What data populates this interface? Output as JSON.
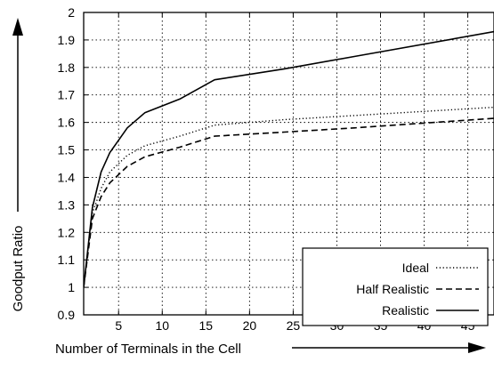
{
  "chart_data": {
    "type": "line",
    "title": "",
    "xlabel": "Number of Terminals in the Cell",
    "ylabel": "Goodput Ratio",
    "xlim": [
      1,
      48
    ],
    "ylim": [
      0.9,
      2.0
    ],
    "xticks": [
      5,
      10,
      15,
      20,
      25,
      30,
      35,
      40,
      45
    ],
    "yticks": [
      0.9,
      1.0,
      1.1,
      1.2,
      1.3,
      1.4,
      1.5,
      1.6,
      1.7,
      1.8,
      1.9,
      2.0
    ],
    "ytick_labels": [
      "0.9",
      "1",
      "1.1",
      "1.2",
      "1.3",
      "1.4",
      "1.5",
      "1.6",
      "1.7",
      "1.8",
      "1.9",
      "2"
    ],
    "grid": true,
    "legend_position": "bottom-right",
    "series": [
      {
        "name": "Ideal",
        "style": "dotted",
        "x": [
          1,
          2,
          3,
          4,
          6,
          8,
          12,
          16,
          24,
          32,
          48
        ],
        "y": [
          1.0,
          1.27,
          1.36,
          1.42,
          1.48,
          1.515,
          1.55,
          1.59,
          1.61,
          1.625,
          1.655
        ]
      },
      {
        "name": "Half Realistic",
        "style": "dashed",
        "x": [
          1,
          2,
          3,
          4,
          6,
          8,
          12,
          16,
          24,
          32,
          48
        ],
        "y": [
          1.0,
          1.25,
          1.33,
          1.38,
          1.44,
          1.475,
          1.51,
          1.55,
          1.565,
          1.58,
          1.615
        ]
      },
      {
        "name": "Realistic",
        "style": "solid",
        "x": [
          1,
          2,
          3,
          4,
          6,
          8,
          12,
          16,
          24,
          32,
          48
        ],
        "y": [
          1.0,
          1.29,
          1.42,
          1.49,
          1.58,
          1.635,
          1.685,
          1.755,
          1.795,
          1.84,
          1.93
        ]
      }
    ]
  },
  "colors": {
    "line": "#000000",
    "grid": "#000000",
    "background": "#ffffff"
  }
}
